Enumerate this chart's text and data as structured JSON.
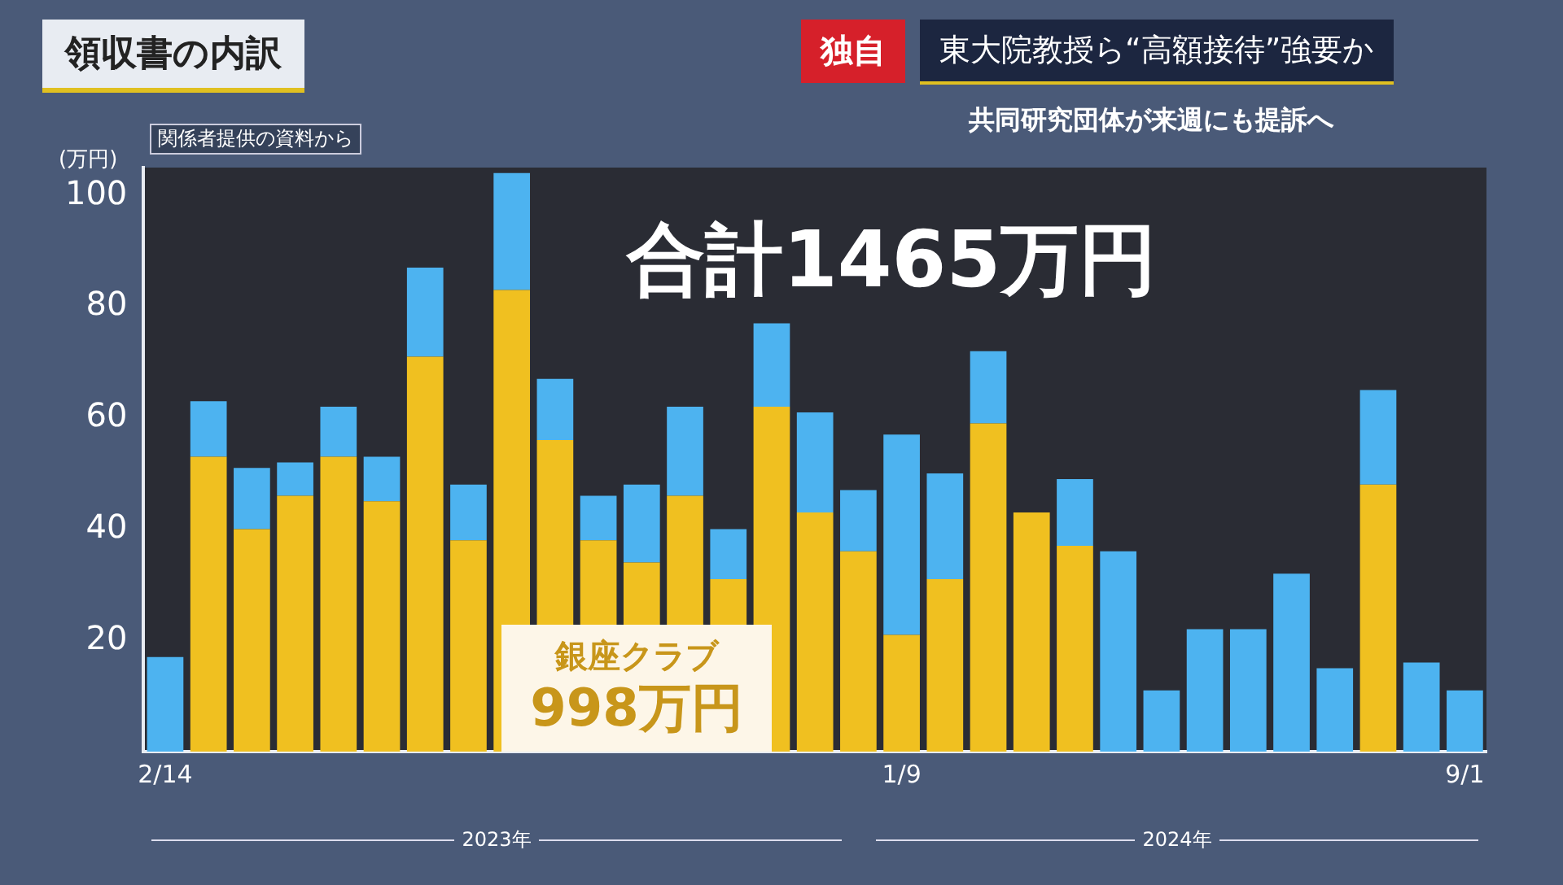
{
  "chart_data": {
    "type": "bar",
    "title": "領収書の内訳",
    "subtitle": "関係者提供の資料から",
    "ylabel": "(万円)",
    "categories": [
      "2/14",
      null,
      null,
      null,
      null,
      null,
      null,
      null,
      null,
      null,
      null,
      null,
      null,
      null,
      null,
      null,
      null,
      "1/9",
      null,
      null,
      null,
      null,
      null,
      null,
      null,
      null,
      null,
      null,
      null,
      null,
      "9/1"
    ],
    "stacked": true,
    "series": [
      {
        "name": "銀座クラブ",
        "color": "#f0c020",
        "values": [
          0,
          53,
          40,
          46,
          53,
          45,
          71,
          38,
          83,
          56,
          38,
          34,
          46,
          31,
          62,
          43,
          36,
          21,
          31,
          59,
          43,
          37,
          0,
          0,
          0,
          0,
          0,
          0,
          48,
          0,
          0
        ]
      },
      {
        "color": "#4db3f0",
        "values": [
          17,
          10,
          11,
          6,
          9,
          8,
          16,
          10,
          21,
          11,
          8,
          14,
          16,
          9,
          15,
          18,
          11,
          36,
          19,
          13,
          0,
          12,
          36,
          11,
          22,
          22,
          32,
          15,
          17,
          16,
          11
        ]
      }
    ],
    "ylim": [
      0,
      105
    ],
    "yticks": [
      20,
      40,
      60,
      80,
      100
    ],
    "legend": false,
    "annotations": [
      "合計1465万円",
      "998万円",
      "独自",
      "東大院教授ら“高額接待”強要か",
      "共同研究団体が来週にも提訴へ",
      "2023年",
      "2024年"
    ]
  }
}
